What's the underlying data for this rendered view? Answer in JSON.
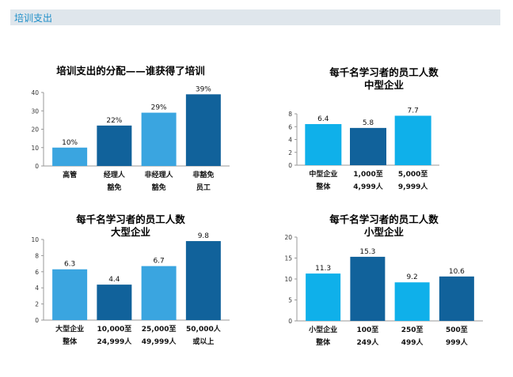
{
  "header": {
    "title": "培训支出"
  },
  "chart_data": [
    {
      "type": "bar",
      "title": "培训支出的分配——谁获得了培训",
      "subtitle": "",
      "categories": [
        [
          "高管"
        ],
        [
          "经理人",
          "豁免"
        ],
        [
          "非经理人",
          "豁免"
        ],
        [
          "非豁免",
          "员工"
        ]
      ],
      "values": [
        10,
        22,
        29,
        39
      ],
      "value_labels": [
        "10%",
        "22%",
        "29%",
        "39%"
      ],
      "ylim": [
        0,
        40
      ],
      "yticks": [
        "0",
        "10",
        "20",
        "30",
        "40"
      ],
      "bar_colors": [
        "#3aa5e0",
        "#11629b",
        "#3aa5e0",
        "#11629b"
      ]
    },
    {
      "type": "bar",
      "title": "每千名学习者的员工人数",
      "subtitle": "中型企业",
      "categories": [
        [
          "中型企业",
          "整体"
        ],
        [
          "1,000至",
          "4,999人"
        ],
        [
          "5,000至",
          "9,999人"
        ]
      ],
      "values": [
        6.4,
        5.8,
        7.7
      ],
      "value_labels": [
        "6.4",
        "5.8",
        "7.7"
      ],
      "ylim": [
        0,
        8
      ],
      "yticks": [
        "0",
        "2",
        "4",
        "6",
        "8"
      ],
      "bar_colors": [
        "#0fb0ea",
        "#11629b",
        "#0fb0ea"
      ]
    },
    {
      "type": "bar",
      "title": "每千名学习者的员工人数",
      "subtitle": "大型企业",
      "categories": [
        [
          "大型企业",
          "整体"
        ],
        [
          "10,000至",
          "24,999人"
        ],
        [
          "25,000至",
          "49,999人"
        ],
        [
          "50,000人",
          "或以上"
        ]
      ],
      "values": [
        6.3,
        4.4,
        6.7,
        9.8
      ],
      "value_labels": [
        "6.3",
        "4.4",
        "6.7",
        "9.8"
      ],
      "ylim": [
        0,
        10
      ],
      "yticks": [
        "0",
        "2",
        "4",
        "6",
        "8",
        "10"
      ],
      "bar_colors": [
        "#3aa5e0",
        "#11629b",
        "#3aa5e0",
        "#11629b"
      ]
    },
    {
      "type": "bar",
      "title": "每千名学习者的员工人数",
      "subtitle": "小型企业",
      "categories": [
        [
          "小型企业",
          "整体"
        ],
        [
          "100至",
          "249人"
        ],
        [
          "250至",
          "499人"
        ],
        [
          "500至",
          "999人"
        ]
      ],
      "values": [
        11.3,
        15.3,
        9.2,
        10.6
      ],
      "value_labels": [
        "11.3",
        "15.3",
        "9.2",
        "10.6"
      ],
      "ylim": [
        0,
        20
      ],
      "yticks": [
        "0",
        "5",
        "10",
        "15",
        "20"
      ],
      "bar_colors": [
        "#0fb0ea",
        "#11629b",
        "#0fb0ea",
        "#11629b"
      ]
    }
  ]
}
